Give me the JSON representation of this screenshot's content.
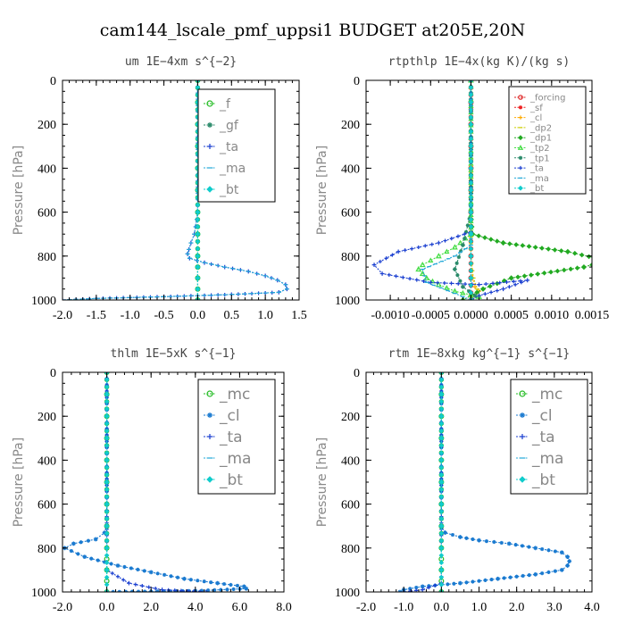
{
  "figure": {
    "suptitle": "cam144_lscale_pmf_uppsi1  BUDGET at205E,20N"
  },
  "chart_data": [
    {
      "type": "line",
      "title": "um  1E−4xm s^{−2}",
      "ylabel": "Pressure [hPa]",
      "xlim": [
        -2.0,
        1.5
      ],
      "ylim": [
        1000,
        0
      ],
      "xticks": [
        "-2.0",
        "-1.5",
        "-1.0",
        "-0.5",
        "0.0",
        "0.5",
        "1.0",
        "1.5"
      ],
      "yticks": [
        "0",
        "200",
        "400",
        "600",
        "800",
        "1000"
      ],
      "legend_position": "top-right",
      "grid": false,
      "series": [
        {
          "name": "_f",
          "color": "#22bb22",
          "marker": "circle",
          "x": [
            0,
            0,
            0,
            0,
            0,
            0,
            0,
            0,
            0,
            0,
            0,
            0,
            0
          ],
          "y": [
            0,
            100,
            200,
            300,
            400,
            500,
            600,
            700,
            800,
            850,
            900,
            950,
            1000
          ]
        },
        {
          "name": "_gf",
          "color": "#2a8a6a",
          "marker": "star",
          "x": [
            0,
            0,
            0,
            0,
            0,
            0,
            0,
            0,
            0,
            0,
            0,
            0,
            0
          ],
          "y": [
            0,
            100,
            200,
            300,
            400,
            500,
            600,
            700,
            800,
            850,
            900,
            950,
            1000
          ]
        },
        {
          "name": "_ta",
          "color": "#1a3fd0",
          "marker": "plus",
          "x": [
            0,
            0,
            0,
            0,
            -0.05,
            -0.1,
            -0.13,
            -0.15,
            -0.12,
            0.1,
            0.4,
            0.75,
            1.0,
            1.18,
            1.3,
            1.32,
            1.2,
            0.5,
            -0.5,
            -1.5,
            -2.0
          ],
          "y": [
            0,
            200,
            400,
            600,
            700,
            740,
            770,
            790,
            810,
            830,
            850,
            870,
            890,
            910,
            930,
            950,
            965,
            975,
            985,
            993,
            1000
          ]
        },
        {
          "name": "_ma",
          "color": "#22a8d8",
          "marker": "dash",
          "x": [
            0,
            0,
            0,
            0,
            -0.05,
            -0.1,
            -0.13,
            -0.15,
            -0.12,
            0.1,
            0.4,
            0.75,
            1.0,
            1.18,
            1.3,
            1.32,
            1.2,
            0.5,
            -0.5,
            -1.5,
            -2.0
          ],
          "y": [
            0,
            200,
            400,
            600,
            700,
            740,
            770,
            790,
            810,
            830,
            850,
            870,
            890,
            910,
            930,
            950,
            965,
            975,
            985,
            993,
            1000
          ]
        },
        {
          "name": "_bt",
          "color": "#11cccc",
          "marker": "diamond",
          "x": [
            0,
            0,
            0,
            0,
            0,
            0,
            0,
            0,
            0,
            0,
            0,
            0,
            0
          ],
          "y": [
            0,
            100,
            200,
            300,
            400,
            500,
            600,
            700,
            800,
            850,
            900,
            950,
            1000
          ]
        }
      ]
    },
    {
      "type": "line",
      "title": "rtpthlp  1E−4x(kg K)/(kg s)",
      "ylabel": "Pressure [hPa]",
      "xlim": [
        -0.0013,
        0.0015
      ],
      "ylim": [
        1000,
        0
      ],
      "xticks": [
        "-0.0010",
        "-0.0005",
        "0.0000",
        "0.0005",
        "0.0010",
        "0.0015"
      ],
      "yticks": [
        "0",
        "200",
        "400",
        "600",
        "800",
        "1000"
      ],
      "legend_position": "top-right",
      "grid": false,
      "series": [
        {
          "name": "_forcing",
          "color": "#dd2222",
          "marker": "circle",
          "x": [
            0,
            0,
            0,
            0,
            0,
            0,
            0,
            0,
            0,
            0,
            0
          ],
          "y": [
            0,
            100,
            200,
            300,
            400,
            500,
            600,
            700,
            800,
            900,
            1000
          ]
        },
        {
          "name": "_sf",
          "color": "#ee2222",
          "marker": "star",
          "x": [
            0,
            0,
            0,
            0,
            0,
            0,
            0,
            0,
            0,
            0,
            0
          ],
          "y": [
            0,
            100,
            200,
            300,
            400,
            500,
            600,
            700,
            800,
            900,
            1000
          ]
        },
        {
          "name": "_cl",
          "color": "#ffaa00",
          "marker": "plus",
          "x": [
            0,
            0,
            0,
            0,
            2e-05,
            5e-05,
            0.0001,
            5e-05,
            0
          ],
          "y": [
            0,
            300,
            600,
            800,
            900,
            940,
            960,
            980,
            1000
          ]
        },
        {
          "name": "_dp2",
          "color": "#cccc00",
          "marker": "dash",
          "x": [
            0,
            0,
            0,
            3e-05,
            8e-05,
            3e-05,
            0
          ],
          "y": [
            0,
            400,
            800,
            900,
            950,
            980,
            1000
          ]
        },
        {
          "name": "_dp1",
          "color": "#22aa22",
          "marker": "diamond",
          "x": [
            0,
            0,
            2e-05,
            0.0004,
            0.0012,
            0.00155,
            0.0016,
            0.0014,
            0.0005,
            0.00015,
            0,
            -0.0001
          ],
          "y": [
            0,
            600,
            700,
            740,
            780,
            810,
            830,
            850,
            900,
            950,
            980,
            1000
          ]
        },
        {
          "name": "_tp2",
          "color": "#44dd44",
          "marker": "triangle",
          "x": [
            0,
            0,
            -0.0002,
            -0.0004,
            -0.0006,
            -0.00065,
            -0.0006,
            -0.00055,
            -0.0004,
            -0.0002,
            0.0001,
            0
          ],
          "y": [
            0,
            700,
            760,
            800,
            840,
            860,
            880,
            900,
            930,
            960,
            985,
            1000
          ]
        },
        {
          "name": "_tp1",
          "color": "#2a8a6a",
          "marker": "star",
          "x": [
            0,
            0,
            -0.0001,
            -0.0002,
            -0.0001,
            5e-05,
            0
          ],
          "y": [
            0,
            600,
            750,
            860,
            940,
            980,
            1000
          ]
        },
        {
          "name": "_ta",
          "color": "#1a3fd0",
          "marker": "plus",
          "x": [
            0,
            0,
            -0.0004,
            -0.0009,
            -0.0012,
            -0.0011,
            -0.0005,
            0.0001,
            0.0007,
            0.0004,
            0.0001,
            0
          ],
          "y": [
            0,
            690,
            740,
            780,
            840,
            880,
            920,
            930,
            910,
            950,
            980,
            1000
          ]
        },
        {
          "name": "_ma",
          "color": "#22a8d8",
          "marker": "dash",
          "x": [
            0,
            0,
            -0.0002,
            -0.0006,
            -0.00055,
            -0.0002,
            0
          ],
          "y": [
            0,
            750,
            800,
            860,
            920,
            970,
            1000
          ]
        },
        {
          "name": "_bt",
          "color": "#11cccc",
          "marker": "diamond",
          "x": [
            0,
            0,
            0,
            0,
            0,
            0,
            0,
            0,
            0,
            0,
            0
          ],
          "y": [
            0,
            100,
            200,
            300,
            400,
            500,
            600,
            700,
            800,
            900,
            1000
          ]
        }
      ]
    },
    {
      "type": "line",
      "title": "thlm  1E−5xK s^{−1}",
      "ylabel": "Pressure [hPa]",
      "xlim": [
        -2.0,
        8.0
      ],
      "ylim": [
        1000,
        0
      ],
      "xticks": [
        "-2.0",
        "0.0",
        "2.0",
        "4.0",
        "6.0",
        "8.0"
      ],
      "yticks": [
        "0",
        "200",
        "400",
        "600",
        "800",
        "1000"
      ],
      "legend_position": "top-right",
      "grid": false,
      "series": [
        {
          "name": "_mc",
          "color": "#22bb22",
          "marker": "circle",
          "x": [
            0,
            0,
            0,
            0,
            0,
            0,
            0,
            0,
            0,
            0,
            0,
            0,
            0
          ],
          "y": [
            0,
            100,
            200,
            300,
            400,
            500,
            600,
            700,
            800,
            850,
            900,
            950,
            1000
          ]
        },
        {
          "name": "_cl",
          "color": "#1a7ad0",
          "marker": "star",
          "x": [
            0,
            0,
            0,
            -0.1,
            -0.5,
            -1.5,
            -1.9,
            -1.0,
            0.5,
            2.0,
            3.5,
            5.0,
            6.2,
            6.3,
            4.0,
            0.0
          ],
          "y": [
            0,
            600,
            700,
            730,
            760,
            780,
            800,
            840,
            880,
            910,
            940,
            960,
            975,
            985,
            995,
            1000
          ]
        },
        {
          "name": "_ta",
          "color": "#1a3fd0",
          "marker": "plus",
          "x": [
            0,
            0,
            0,
            0,
            0,
            0,
            1.0,
            2.5,
            4.5
          ],
          "y": [
            0,
            200,
            400,
            600,
            800,
            900,
            960,
            990,
            1000
          ]
        },
        {
          "name": "_ma",
          "color": "#22a8d8",
          "marker": "dash",
          "x": [
            0,
            0,
            0,
            0,
            0,
            0,
            0,
            0,
            0,
            0,
            0
          ],
          "y": [
            0,
            100,
            200,
            300,
            400,
            500,
            600,
            700,
            800,
            900,
            1000
          ]
        },
        {
          "name": "_bt",
          "color": "#11cccc",
          "marker": "diamond",
          "x": [
            0,
            0,
            0,
            0,
            0,
            0,
            0,
            0,
            0,
            0,
            0
          ],
          "y": [
            0,
            100,
            200,
            300,
            400,
            500,
            600,
            700,
            800,
            900,
            1000
          ]
        }
      ]
    },
    {
      "type": "line",
      "title": "rtm  1E−8xkg kg^{−1} s^{−1}",
      "ylabel": "Pressure [hPa]",
      "xlim": [
        -2.0,
        4.0
      ],
      "ylim": [
        1000,
        0
      ],
      "xticks": [
        "-2.0",
        "-1.0",
        "0.0",
        "1.0",
        "2.0",
        "3.0",
        "4.0"
      ],
      "yticks": [
        "0",
        "200",
        "400",
        "600",
        "800",
        "1000"
      ],
      "legend_position": "top-right",
      "grid": false,
      "series": [
        {
          "name": "_mc",
          "color": "#22bb22",
          "marker": "circle",
          "x": [
            0,
            0,
            0,
            0,
            0,
            0,
            0,
            0,
            0,
            0,
            0,
            0,
            0
          ],
          "y": [
            0,
            100,
            200,
            300,
            400,
            500,
            600,
            700,
            800,
            850,
            900,
            950,
            1000
          ]
        },
        {
          "name": "_cl",
          "color": "#1a7ad0",
          "marker": "star",
          "x": [
            0,
            0,
            0,
            0.1,
            0.5,
            1.0,
            1.8,
            2.5,
            3.2,
            3.35,
            3.4,
            3.35,
            3.2,
            2.5,
            1.5,
            0.5,
            -0.5,
            -1.0,
            -1.1
          ],
          "y": [
            0,
            600,
            700,
            730,
            750,
            765,
            780,
            800,
            820,
            840,
            860,
            880,
            900,
            920,
            940,
            960,
            975,
            990,
            1000
          ]
        },
        {
          "name": "_ta",
          "color": "#1a3fd0",
          "marker": "plus",
          "x": [
            0,
            0,
            0,
            0,
            0,
            0,
            0,
            -0.5,
            -1.0
          ],
          "y": [
            0,
            200,
            400,
            600,
            800,
            900,
            960,
            990,
            1000
          ]
        },
        {
          "name": "_ma",
          "color": "#22a8d8",
          "marker": "dash",
          "x": [
            0,
            0,
            0,
            0,
            0,
            0,
            0,
            0,
            0,
            0,
            0
          ],
          "y": [
            0,
            100,
            200,
            300,
            400,
            500,
            600,
            700,
            800,
            900,
            1000
          ]
        },
        {
          "name": "_bt",
          "color": "#11cccc",
          "marker": "diamond",
          "x": [
            0,
            0,
            0,
            0,
            0,
            0,
            0,
            0,
            0,
            0,
            0
          ],
          "y": [
            0,
            100,
            200,
            300,
            400,
            500,
            600,
            700,
            800,
            900,
            1000
          ]
        }
      ]
    }
  ]
}
